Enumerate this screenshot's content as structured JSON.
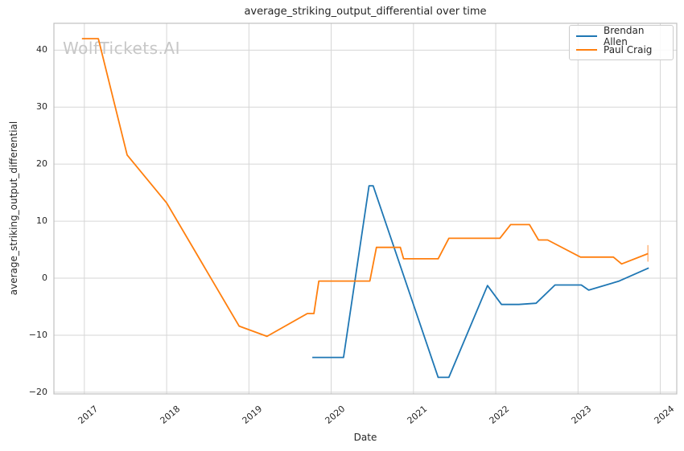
{
  "figure": {
    "title": "average_striking_output_differential over time",
    "xlabel": "Date",
    "ylabel": "average_striking_output_differential",
    "watermark": "WolfTickets.AI"
  },
  "legend": {
    "position": "upper right",
    "entries": [
      {
        "label": "Brendan Allen",
        "color": "#1f77b4"
      },
      {
        "label": "Paul Craig",
        "color": "#ff7f0e"
      }
    ]
  },
  "colors": {
    "grid": "#d6d6d6",
    "spine": "#c0c0c0",
    "text": "#262626",
    "watermark": "#c7c7c7",
    "plot_background": "#ffffff"
  },
  "chart_data": {
    "type": "line",
    "title": "average_striking_output_differential over time",
    "xlabel": "Date",
    "ylabel": "average_striking_output_differential",
    "grid": true,
    "legend_position": "upper right",
    "xlim": [
      2016.63,
      2024.2
    ],
    "ylim": [
      -20.3,
      44.7
    ],
    "x_ticks": [
      {
        "value": 2017,
        "label": "2017"
      },
      {
        "value": 2018,
        "label": "2018"
      },
      {
        "value": 2019,
        "label": "2019"
      },
      {
        "value": 2020,
        "label": "2020"
      },
      {
        "value": 2021,
        "label": "2021"
      },
      {
        "value": 2022,
        "label": "2022"
      },
      {
        "value": 2023,
        "label": "2023"
      },
      {
        "value": 2024,
        "label": "2024"
      }
    ],
    "y_ticks": [
      {
        "value": -20,
        "label": "−20"
      },
      {
        "value": -10,
        "label": "−10"
      },
      {
        "value": 0,
        "label": "0"
      },
      {
        "value": 10,
        "label": "10"
      },
      {
        "value": 20,
        "label": "20"
      },
      {
        "value": 30,
        "label": "30"
      },
      {
        "value": 40,
        "label": "40"
      }
    ],
    "series": [
      {
        "name": "Brendan Allen",
        "color": "#1f77b4",
        "points": [
          [
            2019.77,
            -13.9
          ],
          [
            2020.15,
            -13.9
          ],
          [
            2020.46,
            16.2
          ],
          [
            2020.51,
            16.2
          ],
          [
            2021.3,
            -17.4
          ],
          [
            2021.43,
            -17.4
          ],
          [
            2021.9,
            -1.3
          ],
          [
            2022.07,
            -4.6
          ],
          [
            2022.28,
            -4.6
          ],
          [
            2022.49,
            -4.4
          ],
          [
            2022.72,
            -1.2
          ],
          [
            2023.04,
            -1.2
          ],
          [
            2023.13,
            -2.1
          ],
          [
            2023.5,
            -0.5
          ],
          [
            2023.86,
            1.8
          ]
        ]
      },
      {
        "name": "Paul Craig",
        "color": "#ff7f0e",
        "points": [
          [
            2016.97,
            42.0
          ],
          [
            2017.17,
            42.0
          ],
          [
            2017.52,
            21.6
          ],
          [
            2018.0,
            13.2
          ],
          [
            2018.88,
            -8.4
          ],
          [
            2019.22,
            -10.2
          ],
          [
            2019.71,
            -6.2
          ],
          [
            2019.79,
            -6.2
          ],
          [
            2019.85,
            -0.5
          ],
          [
            2020.47,
            -0.5
          ],
          [
            2020.55,
            5.4
          ],
          [
            2020.84,
            5.4
          ],
          [
            2020.88,
            3.4
          ],
          [
            2021.3,
            3.4
          ],
          [
            2021.43,
            7.0
          ],
          [
            2022.05,
            7.0
          ],
          [
            2022.18,
            9.4
          ],
          [
            2022.41,
            9.4
          ],
          [
            2022.52,
            6.7
          ],
          [
            2022.63,
            6.7
          ],
          [
            2023.03,
            3.7
          ],
          [
            2023.43,
            3.7
          ],
          [
            2023.53,
            2.5
          ],
          [
            2023.85,
            4.3
          ]
        ],
        "end_error_bar": {
          "x": 2023.85,
          "y_low": 2.9,
          "y_high": 5.8,
          "color": "#ffc190"
        }
      }
    ]
  }
}
